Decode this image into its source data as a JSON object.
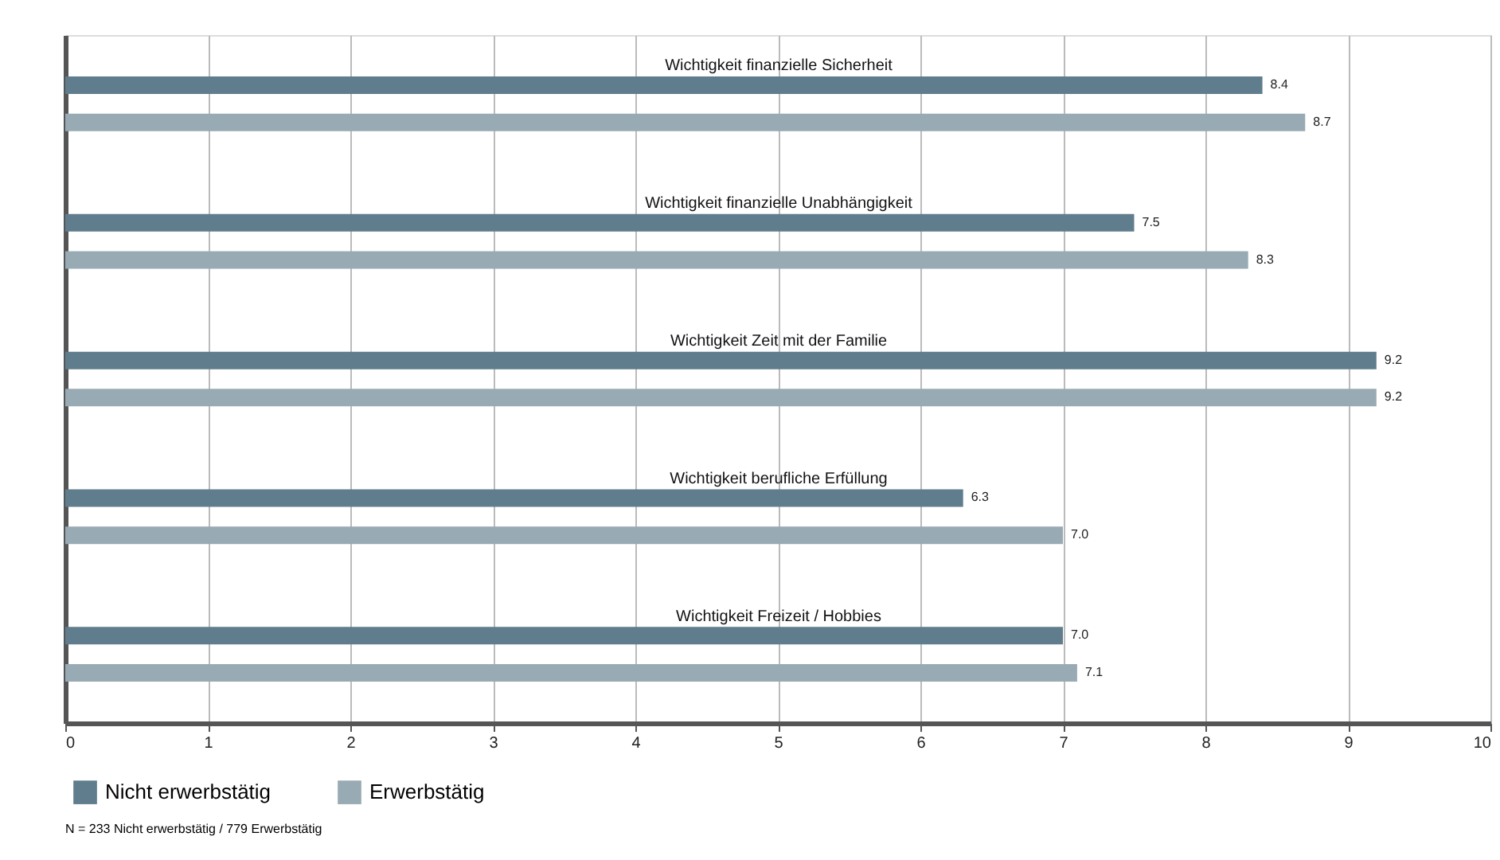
{
  "chart_data": {
    "type": "bar",
    "orientation": "horizontal",
    "categories": [
      "Wichtigkeit finanzielle Sicherheit",
      "Wichtigkeit finanzielle Unabhängigkeit",
      "Wichtigkeit Zeit mit der Familie",
      "Wichtigkeit berufliche Erfüllung",
      "Wichtigkeit Freizeit / Hobbies"
    ],
    "series": [
      {
        "name": "Nicht erwerbstätig",
        "color": "#5f7d8c",
        "values": [
          8.4,
          7.5,
          9.2,
          6.3,
          7.0
        ],
        "value_labels": [
          "8.4",
          "7.5",
          "9.2",
          "6.3",
          "7.0"
        ]
      },
      {
        "name": "Erwerbstätig",
        "color": "#98aab4",
        "values": [
          8.7,
          8.3,
          9.2,
          7.0,
          7.1
        ],
        "value_labels": [
          "8.7",
          "8.3",
          "9.2",
          "7.0",
          "7.1"
        ]
      }
    ],
    "xlim": [
      0,
      10
    ],
    "xticks": [
      0,
      1,
      2,
      3,
      4,
      5,
      6,
      7,
      8,
      9,
      10
    ],
    "grid": "x",
    "legend": "bottom",
    "annotations": [
      "N = 233 Nicht erwerbstätig / 779 Erwerbstätig"
    ]
  }
}
